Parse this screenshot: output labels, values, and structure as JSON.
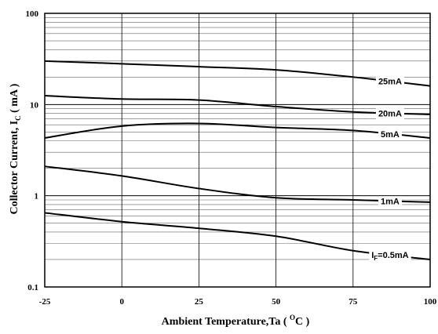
{
  "chart_data": {
    "type": "line",
    "xlabel": "Ambient Temperature,Ta ( OC )",
    "xlabel_parts": {
      "main": "Ambient Temperature,Ta ( ",
      "sup": "O",
      "unit": "C )"
    },
    "ylabel": "Collector Current, IC ( mA )",
    "ylabel_parts": {
      "main": "Collector Current, I",
      "sub": "C",
      "unit": " ( mA )"
    },
    "xlim": [
      -25,
      100
    ],
    "ylim": [
      0.1,
      100
    ],
    "yscale": "log",
    "x_ticks": [
      "-25",
      "0",
      "25",
      "50",
      "75",
      "100"
    ],
    "y_ticks": [
      "0.1",
      "1",
      "10",
      "100"
    ],
    "grid": true,
    "series": [
      {
        "name": "25mA",
        "x": [
          -25,
          0,
          25,
          50,
          75,
          100
        ],
        "y": [
          30,
          28,
          26,
          24,
          20,
          16
        ]
      },
      {
        "name": "20mA",
        "x": [
          -25,
          0,
          25,
          50,
          75,
          100
        ],
        "y": [
          12.5,
          11.5,
          11.2,
          9.5,
          8.3,
          7.8
        ]
      },
      {
        "name": "5mA",
        "x": [
          -25,
          0,
          25,
          50,
          75,
          100
        ],
        "y": [
          4.3,
          5.8,
          6.2,
          5.6,
          5.2,
          4.3
        ]
      },
      {
        "name": "1mA",
        "x": [
          -25,
          0,
          25,
          50,
          75,
          100
        ],
        "y": [
          2.1,
          1.65,
          1.2,
          0.95,
          0.9,
          0.85
        ]
      },
      {
        "name": "IF=0.5mA",
        "x": [
          -25,
          0,
          25,
          50,
          75,
          100
        ],
        "y": [
          0.65,
          0.52,
          0.44,
          0.36,
          0.25,
          0.2
        ]
      }
    ],
    "series_labels": [
      {
        "series": "25mA",
        "text": "25mA",
        "at_x": 87
      },
      {
        "series": "20mA",
        "text": "20mA",
        "at_x": 87
      },
      {
        "series": "5mA",
        "text": "5mA",
        "at_x": 87
      },
      {
        "series": "1mA",
        "text": "1mA",
        "at_x": 87
      },
      {
        "series": "IF=0.5mA",
        "text": "IF=0.5mA",
        "main": "I",
        "sub": "F",
        "rest": "=0.5mA",
        "at_x": 87
      }
    ]
  }
}
